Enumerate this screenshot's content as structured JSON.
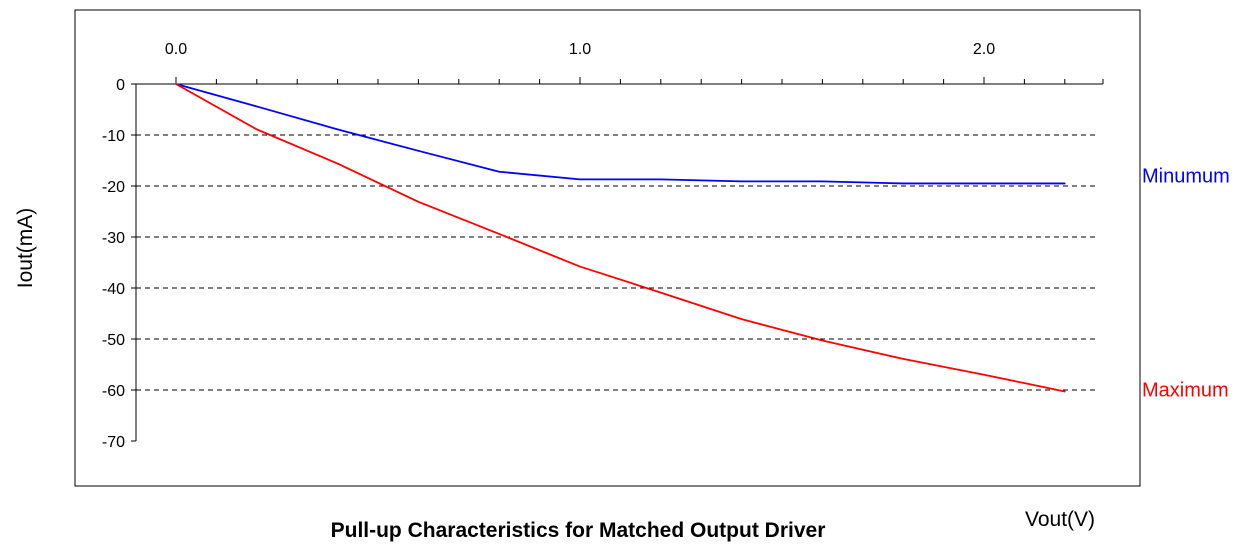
{
  "chart_data": {
    "type": "line",
    "title": "Pull-up Characteristics for Matched Output Driver",
    "xlabel": "Vout(V)",
    "ylabel": "Iout(mA)",
    "xlim": [
      0,
      2.25
    ],
    "ylim": [
      -70,
      0
    ],
    "x_tick_labels": [
      "0.0",
      "1.0",
      "2.0"
    ],
    "x_tick_values": [
      0,
      1,
      2
    ],
    "y_tick_labels": [
      "0",
      "-10",
      "-20",
      "-30",
      "-40",
      "-50",
      "-60",
      "-70"
    ],
    "y_tick_values": [
      0,
      -10,
      -20,
      -30,
      -40,
      -50,
      -60,
      -70
    ],
    "grid": "dashed horizontal",
    "legend": "right",
    "series": [
      {
        "name": "Minumum",
        "color": "#0000ff",
        "x": [
          0,
          0.2,
          0.4,
          0.6,
          0.8,
          1.0,
          1.2,
          1.4,
          1.6,
          1.8,
          2.0,
          2.2
        ],
        "y": [
          0,
          -4.4,
          -8.9,
          -13.1,
          -17.2,
          -18.7,
          -18.7,
          -19.1,
          -19.1,
          -19.5,
          -19.5,
          -19.5
        ]
      },
      {
        "name": "Maximum",
        "color": "#ff0000",
        "x": [
          0,
          0.2,
          0.4,
          0.6,
          0.8,
          1.0,
          1.2,
          1.4,
          1.6,
          1.8,
          2.0,
          2.2
        ],
        "y": [
          0,
          -8.9,
          -15.6,
          -23.1,
          -29.4,
          -35.8,
          -40.9,
          -46.1,
          -50.3,
          -53.9,
          -57.0,
          -60.3
        ]
      }
    ]
  }
}
